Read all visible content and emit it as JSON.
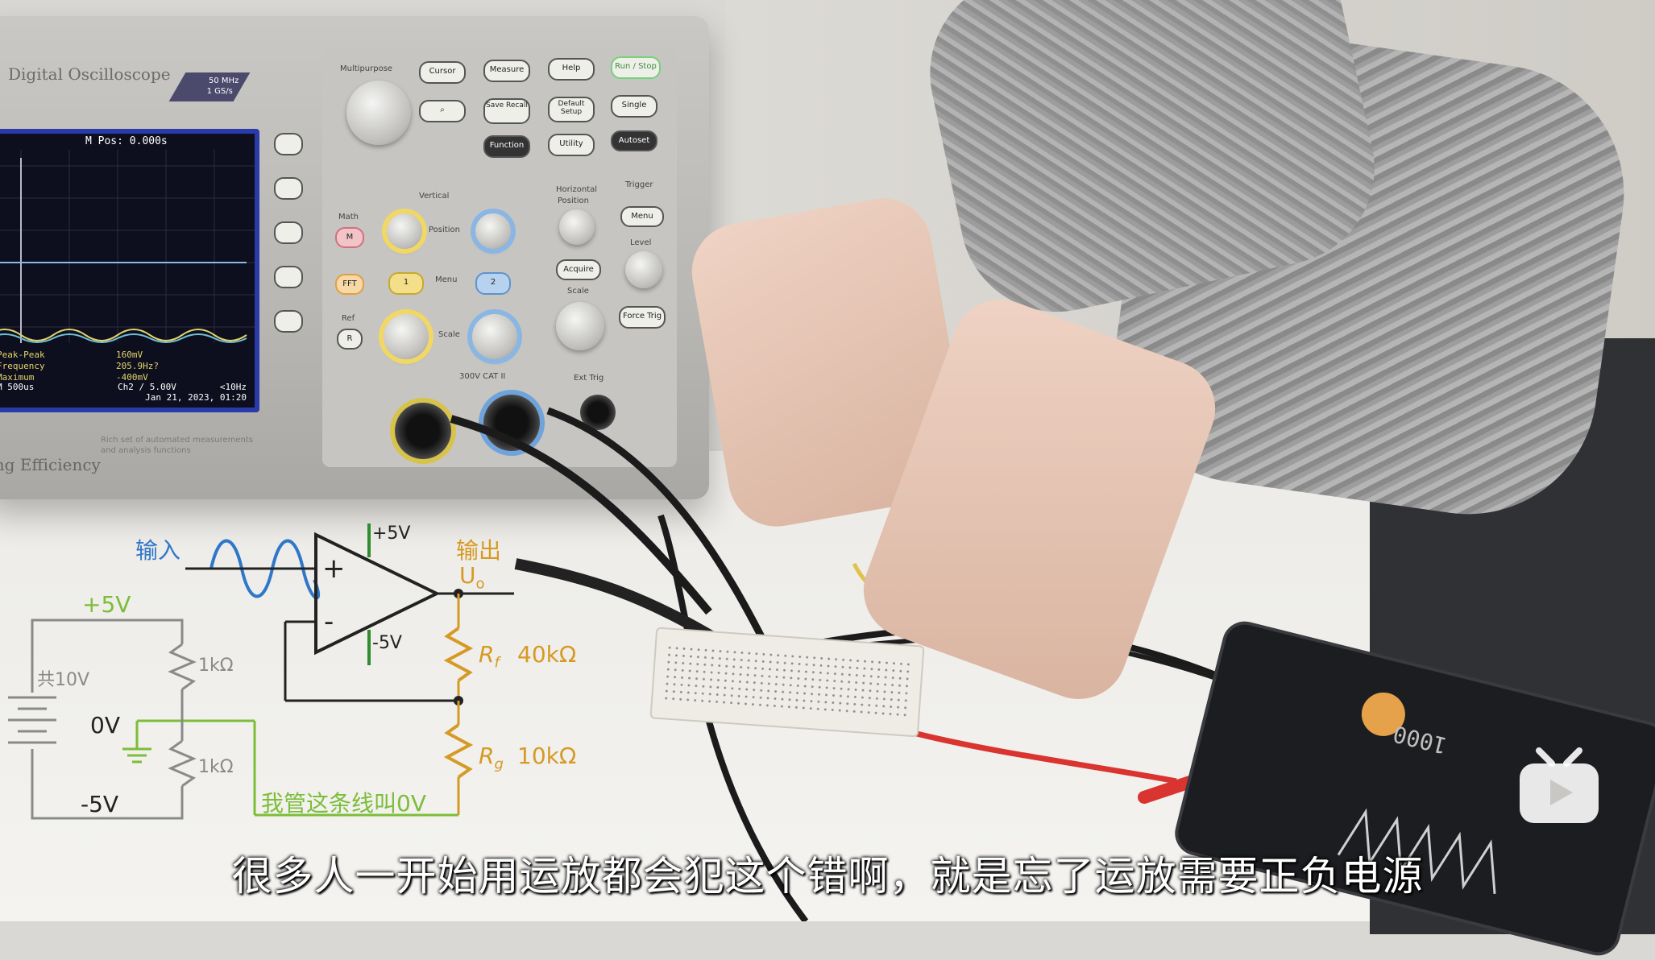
{
  "scope": {
    "brand": "Digital Oscilloscope",
    "badge_line1": "50 MHz",
    "badge_line2": "1 GS/s",
    "screen_top": "M Pos: 0.000s",
    "meas": [
      {
        "label": "Peak-Peak",
        "value": "160mV"
      },
      {
        "label": "Frequency",
        "value": "205.9Hz?"
      },
      {
        "label": "Maximum",
        "value": "-400mV"
      }
    ],
    "foot_left": "M 500us",
    "foot_mid": "Ch2 / 5.00V",
    "foot_right": "<10Hz",
    "foot_date": "Jan 21, 2023, 01:20",
    "efficiency": "ling Efficiency",
    "rich": "Rich set of automated measurements and analysis functions",
    "buttons": {
      "multipurpose": "Multipurpose",
      "cursor": "Cursor",
      "measure": "Measure",
      "help": "Help",
      "run_stop": "Run / Stop",
      "save_recall": "Save Recall",
      "default_setup": "Default Setup",
      "single": "Single",
      "function": "Function",
      "utility": "Utility",
      "autoset": "Autoset",
      "vertical": "Vertical",
      "math": "Math",
      "m": "M",
      "position": "Position",
      "fft": "FFT",
      "ch1": "1",
      "menu": "Menu",
      "ch2": "2",
      "ref": "Ref",
      "r": "R",
      "scale": "Scale",
      "horizontal": "Horizontal",
      "h_position": "Position",
      "acquire": "Acquire",
      "h_scale": "Scale",
      "trigger": "Trigger",
      "t_menu": "Menu",
      "level": "Level",
      "force_trig": "Force Trig",
      "ext_trig": "Ext Trig",
      "cat": "300V CAT II"
    }
  },
  "phone": {
    "reading": "1000"
  },
  "schematic": {
    "input": "输入",
    "output": "输出",
    "uo": "U",
    "uo_sub": "o",
    "plus5_top": "+5V",
    "minus5_amp": "-5V",
    "plus_sign": "+",
    "minus_sign": "-",
    "rf": "R",
    "rf_sub": "f",
    "rf_val": "40kΩ",
    "rg": "R",
    "rg_sub": "g",
    "rg_val": "10kΩ",
    "supply_plus": "+5V",
    "supply_total": "共10V",
    "supply_zero": "0V",
    "supply_minus": "-5V",
    "r1": "1kΩ",
    "r2": "1kΩ",
    "note": "我管这条线叫0V"
  },
  "subtitle": "很多人一开始用运放都会犯这个错啊，就是忘了运放需要正负电源",
  "colors": {
    "blue": "#2f77c9",
    "green": "#7cbd3a",
    "orange": "#d69a24",
    "gray": "#8a8a8a",
    "black": "#222222"
  }
}
